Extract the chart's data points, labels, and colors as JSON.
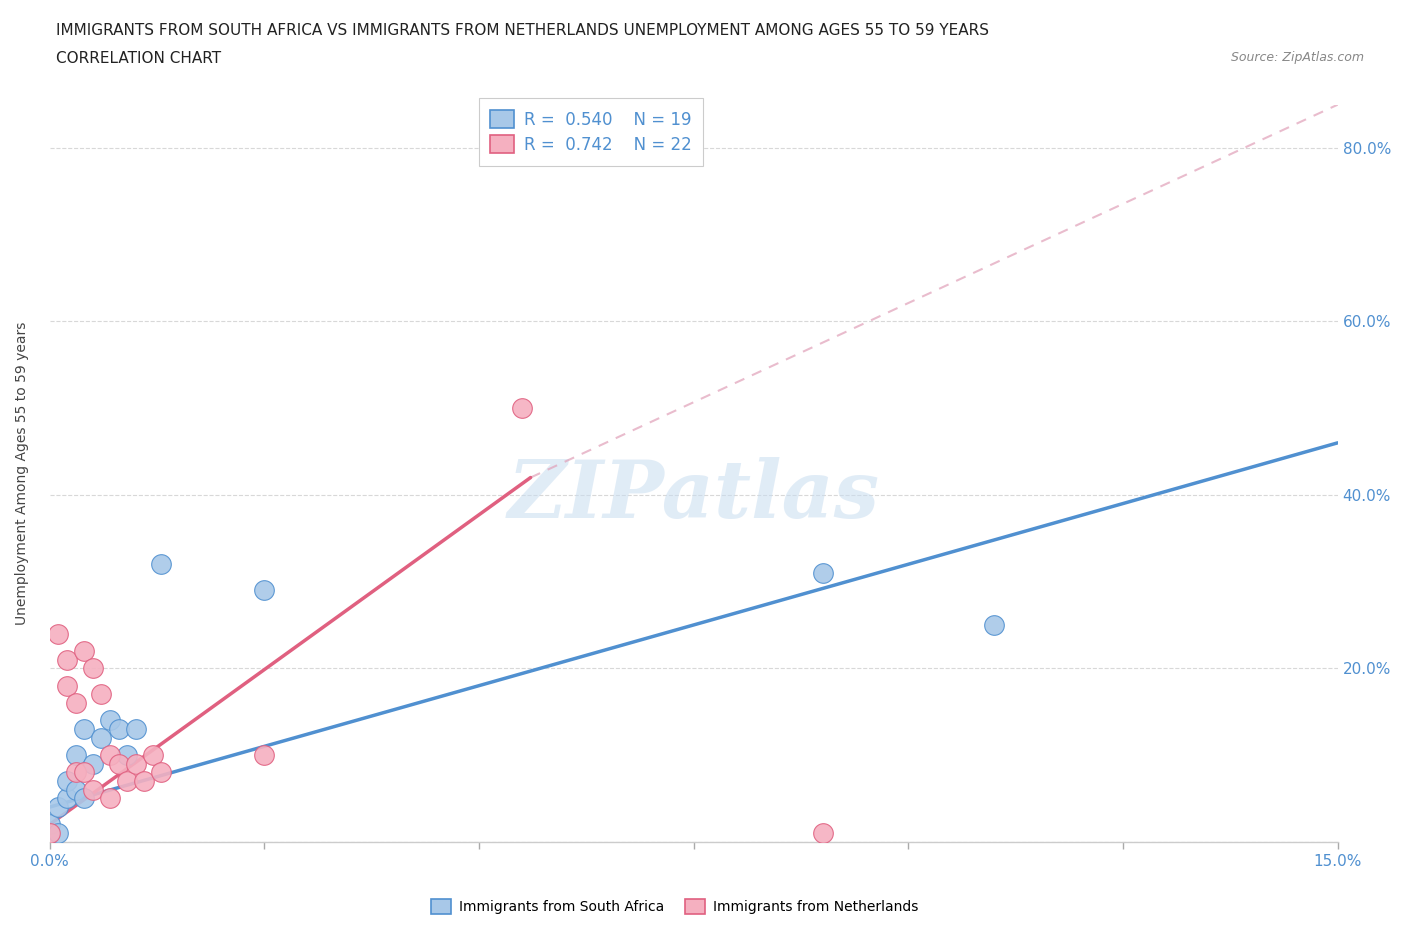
{
  "title_line1": "IMMIGRANTS FROM SOUTH AFRICA VS IMMIGRANTS FROM NETHERLANDS UNEMPLOYMENT AMONG AGES 55 TO 59 YEARS",
  "title_line2": "CORRELATION CHART",
  "source": "Source: ZipAtlas.com",
  "ylabel": "Unemployment Among Ages 55 to 59 years",
  "xlim": [
    0.0,
    0.15
  ],
  "ylim": [
    0.0,
    0.85
  ],
  "ytick_positions": [
    0.0,
    0.2,
    0.4,
    0.6,
    0.8
  ],
  "ytick_labels": [
    "",
    "20.0%",
    "40.0%",
    "60.0%",
    "80.0%"
  ],
  "south_africa_x": [
    0.0,
    0.001,
    0.001,
    0.002,
    0.002,
    0.003,
    0.003,
    0.004,
    0.004,
    0.005,
    0.006,
    0.007,
    0.008,
    0.009,
    0.01,
    0.013,
    0.025,
    0.09,
    0.11
  ],
  "south_africa_y": [
    0.02,
    0.01,
    0.04,
    0.05,
    0.07,
    0.06,
    0.1,
    0.05,
    0.13,
    0.09,
    0.12,
    0.14,
    0.13,
    0.1,
    0.13,
    0.32,
    0.29,
    0.31,
    0.25
  ],
  "netherlands_x": [
    0.0,
    0.001,
    0.002,
    0.002,
    0.003,
    0.003,
    0.004,
    0.004,
    0.005,
    0.005,
    0.006,
    0.007,
    0.007,
    0.008,
    0.009,
    0.01,
    0.011,
    0.012,
    0.013,
    0.025,
    0.055,
    0.09
  ],
  "netherlands_y": [
    0.01,
    0.24,
    0.18,
    0.21,
    0.16,
    0.08,
    0.22,
    0.08,
    0.06,
    0.2,
    0.17,
    0.1,
    0.05,
    0.09,
    0.07,
    0.09,
    0.07,
    0.1,
    0.08,
    0.1,
    0.5,
    0.01
  ],
  "sa_line_x": [
    0.0,
    0.15
  ],
  "sa_line_y": [
    0.04,
    0.46
  ],
  "nl_line_x": [
    0.0,
    0.056
  ],
  "nl_line_y": [
    0.02,
    0.42
  ],
  "dash_line_x": [
    0.056,
    0.15
  ],
  "dash_line_y": [
    0.42,
    0.85
  ],
  "south_africa_color": "#a8c8e8",
  "netherlands_color": "#f5b0c0",
  "south_africa_line_color": "#5090d0",
  "netherlands_line_color": "#e06080",
  "dashed_line_color": "#e0a0b8",
  "R_south_africa": 0.54,
  "N_south_africa": 19,
  "R_netherlands": 0.742,
  "N_netherlands": 22,
  "watermark": "ZIPatlas",
  "background_color": "#ffffff",
  "grid_color": "#d8d8d8",
  "title_fontsize": 11,
  "label_fontsize": 10,
  "tick_fontsize": 11,
  "legend_fontsize": 12
}
